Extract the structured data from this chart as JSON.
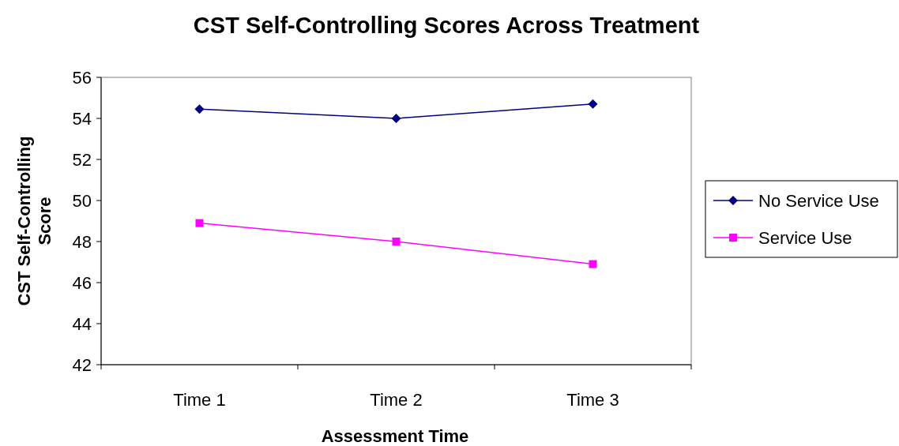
{
  "chart_data": {
    "type": "line",
    "title": "CST Self-Controlling Scores Across Treatment",
    "xlabel": "Assessment Time",
    "ylabel": "CST Self-Controlling Score",
    "categories": [
      "Time 1",
      "Time 2",
      "Time 3"
    ],
    "series": [
      {
        "name": "No Service Use",
        "color": "#000080",
        "marker": "diamond",
        "values": [
          54.45,
          54.0,
          54.7
        ]
      },
      {
        "name": "Service Use",
        "color": "#ff00ff",
        "marker": "square",
        "values": [
          48.9,
          48.0,
          46.9
        ]
      }
    ],
    "ylim": [
      42,
      56
    ],
    "yticks": [
      42,
      44,
      46,
      48,
      50,
      52,
      54,
      56
    ],
    "grid": false,
    "legend": "right",
    "line_style": "solid"
  }
}
